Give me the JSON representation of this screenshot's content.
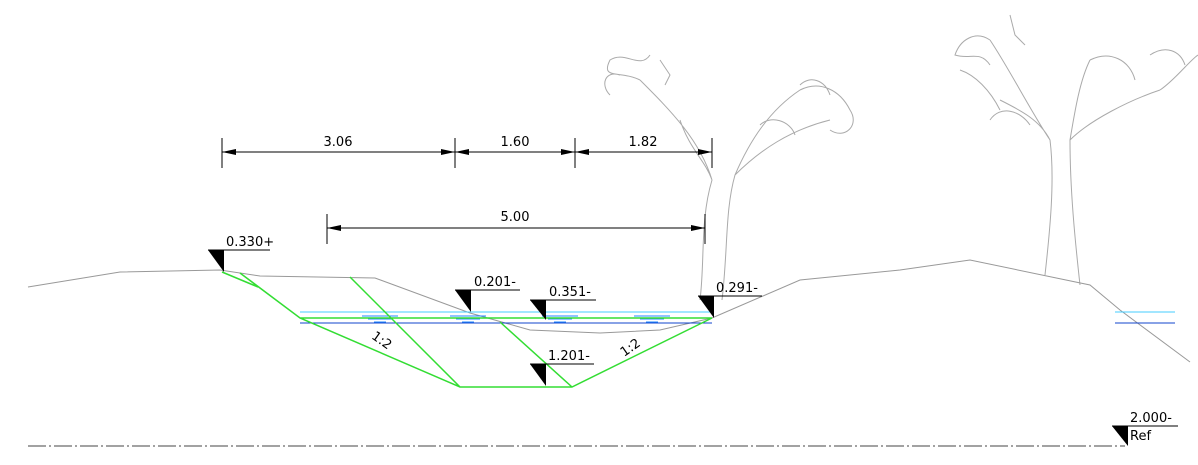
{
  "dimensions": [
    "3.06",
    "1.60",
    "1.82",
    "5.00"
  ],
  "elevations": [
    "0.330+",
    "0.201-",
    "0.351-",
    "0.291-",
    "1.201-",
    "2.000-"
  ],
  "reference": "Ref",
  "slopes": [
    "1:2",
    "1:2"
  ]
}
